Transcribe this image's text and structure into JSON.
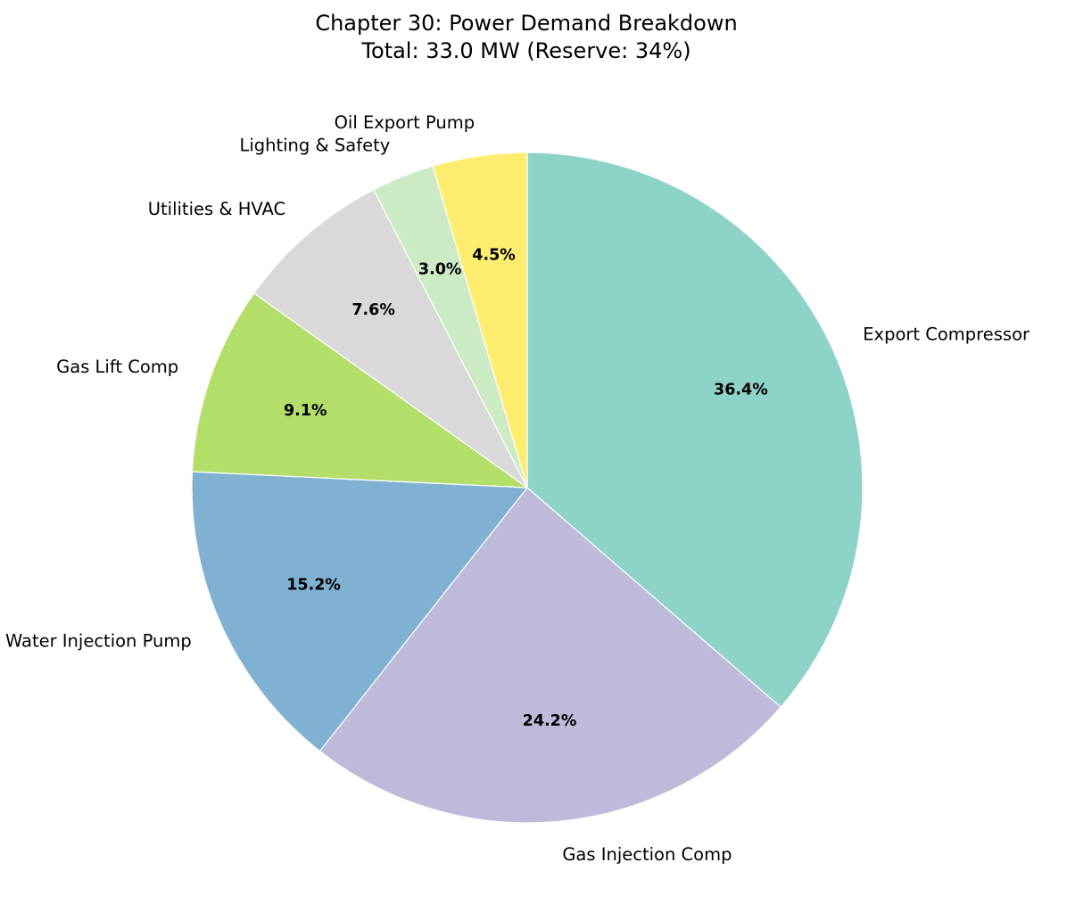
{
  "chart_data": {
    "type": "pie",
    "title": "Chapter 30: Power Demand Breakdown",
    "subtitle": "Total: 33.0 MW (Reserve: 34%)",
    "start_angle_deg": 90,
    "direction": "clockwise",
    "slices": [
      {
        "label": "Export Compressor",
        "value": 12.0,
        "percent_label": "36.4%",
        "color": "#8dd3c7"
      },
      {
        "label": "Gas Injection Comp",
        "value": 8.0,
        "percent_label": "24.2%",
        "color": "#bebada"
      },
      {
        "label": "Water Injection Pump",
        "value": 5.0,
        "percent_label": "15.2%",
        "color": "#80b1d3"
      },
      {
        "label": "Gas Lift Comp",
        "value": 3.0,
        "percent_label": "9.1%",
        "color": "#b3de69"
      },
      {
        "label": "Utilities & HVAC",
        "value": 2.5,
        "percent_label": "7.6%",
        "color": "#d9d9d9"
      },
      {
        "label": "Lighting & Safety",
        "value": 1.0,
        "percent_label": "3.0%",
        "color": "#ccebc5"
      },
      {
        "label": "Oil Export Pump",
        "value": 1.5,
        "percent_label": "4.5%",
        "color": "#ffed6f"
      }
    ]
  }
}
